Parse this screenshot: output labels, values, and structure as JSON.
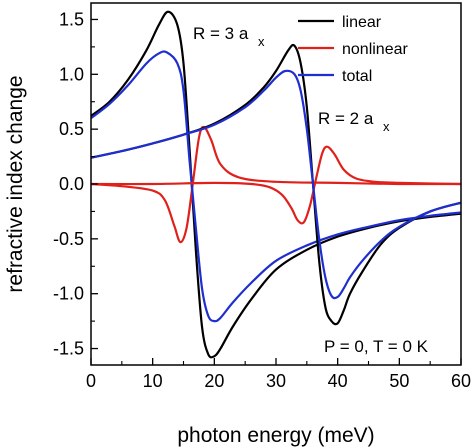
{
  "chart_data": {
    "type": "line",
    "xlabel": "photon energy (meV)",
    "ylabel": "refractive index change",
    "xlim": [
      0,
      60
    ],
    "ylim": [
      -1.65,
      1.65
    ],
    "xticks": [
      0,
      10,
      20,
      30,
      40,
      50,
      60
    ],
    "yticks": [
      -1.5,
      -1.0,
      -0.5,
      0.0,
      0.5,
      1.0,
      1.5
    ],
    "ytick_labels": [
      "-1.5",
      "-1.0",
      "-0.5",
      "0.0",
      "0.5",
      "1.0",
      "1.5"
    ],
    "grid": false,
    "legend_position": "top-right",
    "legend": [
      {
        "label": "linear",
        "color": "#000000"
      },
      {
        "label": "nonlinear",
        "color": "#e0201b"
      },
      {
        "label": "total",
        "color": "#1f2fcf"
      }
    ],
    "annotations": [
      "R = 3 a",
      "x",
      "R = 2 a",
      "x",
      "P = 0, T = 0 K"
    ],
    "series": [
      {
        "color": "#000000",
        "x": [
          0,
          3,
          6,
          9,
          11,
          12.5,
          14,
          15,
          16,
          17,
          18,
          19,
          20,
          21,
          23,
          26,
          30,
          35,
          40,
          45,
          50,
          55,
          60
        ],
        "y": [
          0.62,
          0.75,
          0.95,
          1.22,
          1.45,
          1.57,
          1.45,
          1.1,
          0.3,
          -0.6,
          -1.3,
          -1.55,
          -1.57,
          -1.5,
          -1.3,
          -1.05,
          -0.78,
          -0.6,
          -0.48,
          -0.4,
          -0.34,
          -0.3,
          -0.27
        ]
      },
      {
        "color": "#e0201b",
        "x": [
          0,
          5,
          10,
          12,
          13.5,
          14.5,
          15.5,
          16.5,
          17.5,
          18.3,
          19.5,
          21,
          24,
          30,
          40,
          50,
          60
        ],
        "y": [
          0,
          -0.02,
          -0.06,
          -0.15,
          -0.38,
          -0.53,
          -0.4,
          0,
          0.42,
          0.52,
          0.4,
          0.18,
          0.06,
          0.02,
          0.01,
          0,
          0
        ]
      },
      {
        "color": "#1f2fcf",
        "x": [
          0,
          3,
          6,
          9,
          11,
          12.3,
          14,
          15,
          16,
          17,
          18,
          19,
          20,
          21,
          23,
          26,
          30,
          35,
          40,
          45,
          50,
          55,
          60
        ],
        "y": [
          0.6,
          0.73,
          0.9,
          1.1,
          1.19,
          1.2,
          1.1,
          0.85,
          0.2,
          -0.4,
          -0.95,
          -1.2,
          -1.25,
          -1.22,
          -1.08,
          -0.9,
          -0.7,
          -0.56,
          -0.46,
          -0.39,
          -0.33,
          -0.29,
          -0.26
        ]
      },
      {
        "color": "#000000",
        "x": [
          0,
          5,
          10,
          15,
          20,
          25,
          28,
          30,
          32,
          33,
          34,
          35,
          36,
          37,
          38,
          39,
          40,
          41,
          42,
          44,
          47,
          50,
          55,
          60
        ],
        "y": [
          0.24,
          0.3,
          0.37,
          0.45,
          0.55,
          0.72,
          0.88,
          1.03,
          1.22,
          1.26,
          1.1,
          0.7,
          0,
          -0.7,
          -1.12,
          -1.25,
          -1.27,
          -1.15,
          -1,
          -0.8,
          -0.55,
          -0.4,
          -0.25,
          -0.17
        ]
      },
      {
        "color": "#e0201b",
        "x": [
          0,
          10,
          20,
          26,
          29,
          31,
          32.5,
          33.5,
          34.5,
          35.5,
          36.5,
          37.5,
          38.3,
          39.5,
          41,
          43,
          46,
          50,
          60
        ],
        "y": [
          0,
          0,
          0.01,
          0,
          -0.03,
          -0.1,
          -0.22,
          -0.33,
          -0.35,
          -0.2,
          0.05,
          0.28,
          0.34,
          0.27,
          0.13,
          0.05,
          0.02,
          0.01,
          0
        ]
      },
      {
        "color": "#1f2fcf",
        "x": [
          0,
          5,
          10,
          15,
          20,
          25,
          28,
          30,
          31.5,
          33,
          34,
          35,
          36,
          37,
          38,
          39,
          40,
          41,
          42,
          44,
          47,
          50,
          55,
          60
        ],
        "y": [
          0.24,
          0.3,
          0.37,
          0.45,
          0.54,
          0.7,
          0.85,
          0.97,
          1.03,
          1.0,
          0.85,
          0.5,
          0,
          -0.5,
          -0.85,
          -1.02,
          -1.03,
          -0.95,
          -0.85,
          -0.7,
          -0.52,
          -0.39,
          -0.25,
          -0.17
        ]
      }
    ]
  }
}
